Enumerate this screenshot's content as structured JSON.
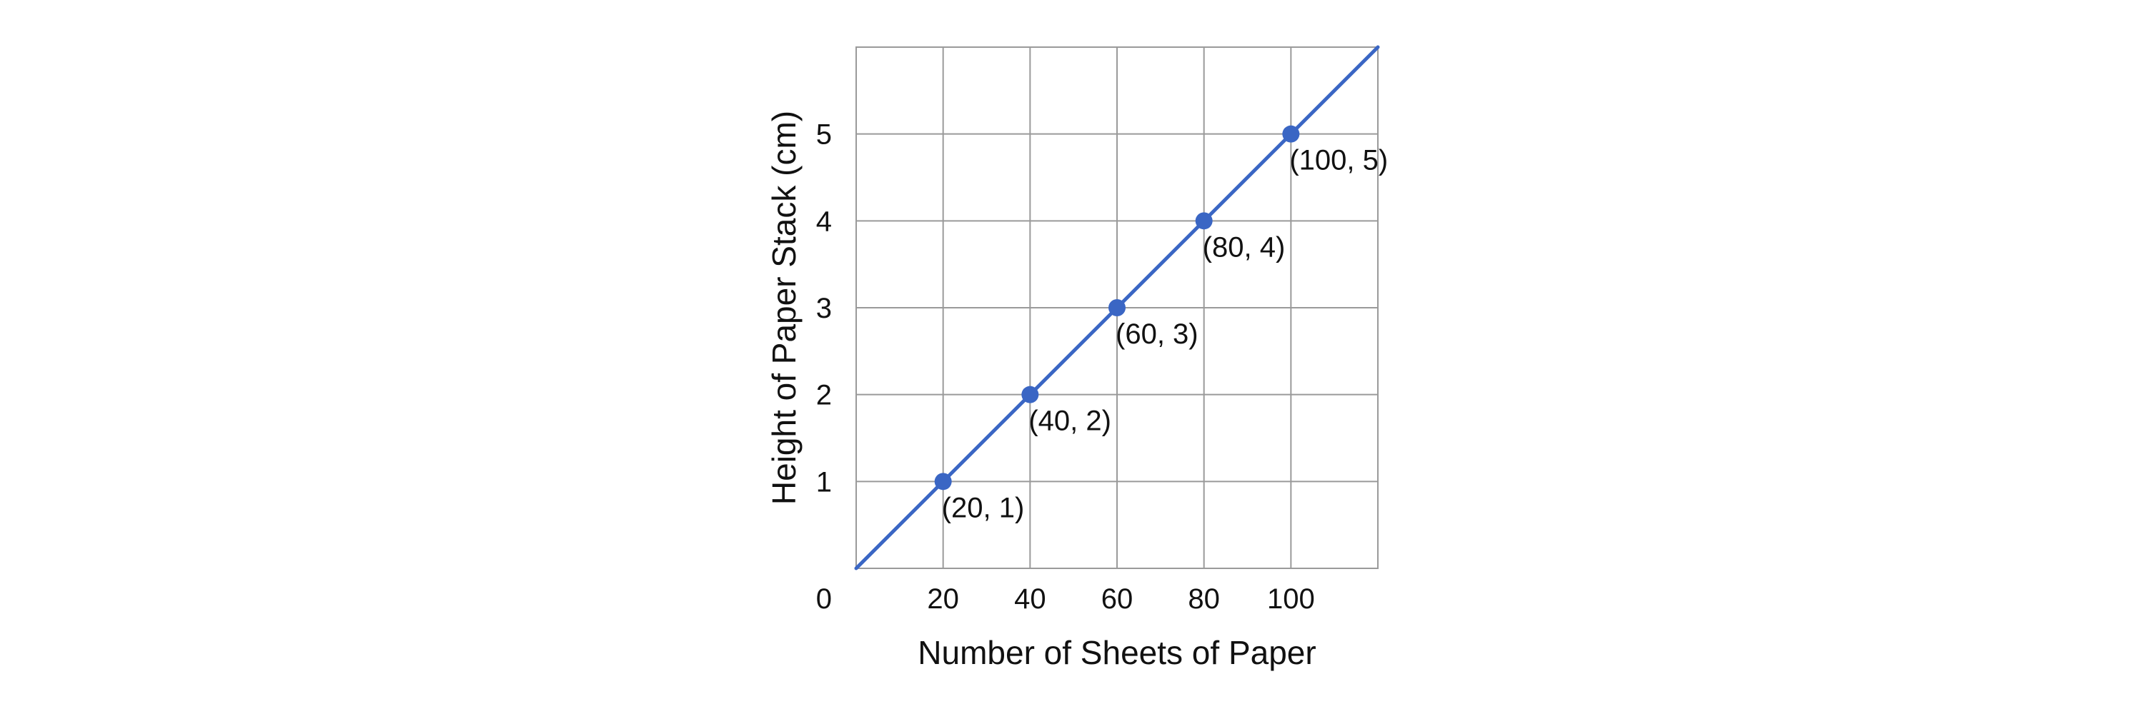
{
  "chart_data": {
    "type": "line",
    "title": "",
    "xlabel": "Number of Sheets of Paper",
    "ylabel": "Height of Paper Stack (cm)",
    "xlim": [
      0,
      120
    ],
    "ylim": [
      0,
      6
    ],
    "x_ticks": [
      20,
      40,
      60,
      80,
      100
    ],
    "y_ticks": [
      1,
      2,
      3,
      4,
      5
    ],
    "origin_label": "0",
    "grid": true,
    "line": {
      "x": [
        0,
        120
      ],
      "y": [
        0,
        6
      ]
    },
    "points": [
      {
        "x": 20,
        "y": 1,
        "label": "(20, 1)"
      },
      {
        "x": 40,
        "y": 2,
        "label": "(40, 2)"
      },
      {
        "x": 60,
        "y": 3,
        "label": "(60, 3)"
      },
      {
        "x": 80,
        "y": 4,
        "label": "(80, 4)"
      },
      {
        "x": 100,
        "y": 5,
        "label": "(100, 5)"
      }
    ],
    "colors": {
      "series": "#3a66c4",
      "grid": "#9a9a9a"
    }
  }
}
